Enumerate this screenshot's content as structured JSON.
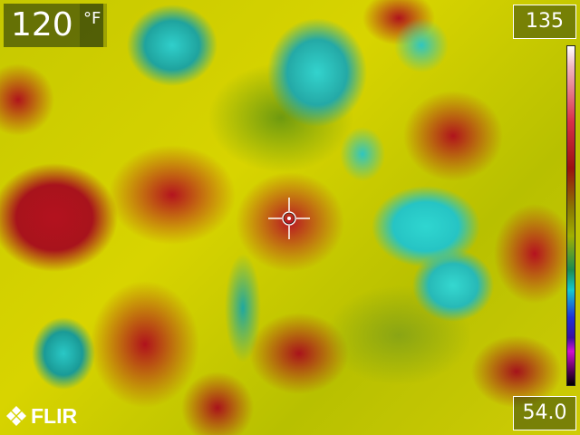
{
  "spot_meter": {
    "value": "120",
    "unit": "°F"
  },
  "scale": {
    "max": "135",
    "min": "54.0",
    "palette": "rainbow-hc"
  },
  "brand": {
    "logo_text": "FLIR"
  },
  "icons": {
    "crosshair": "crosshair-icon",
    "logo": "flir-logo-icon"
  }
}
